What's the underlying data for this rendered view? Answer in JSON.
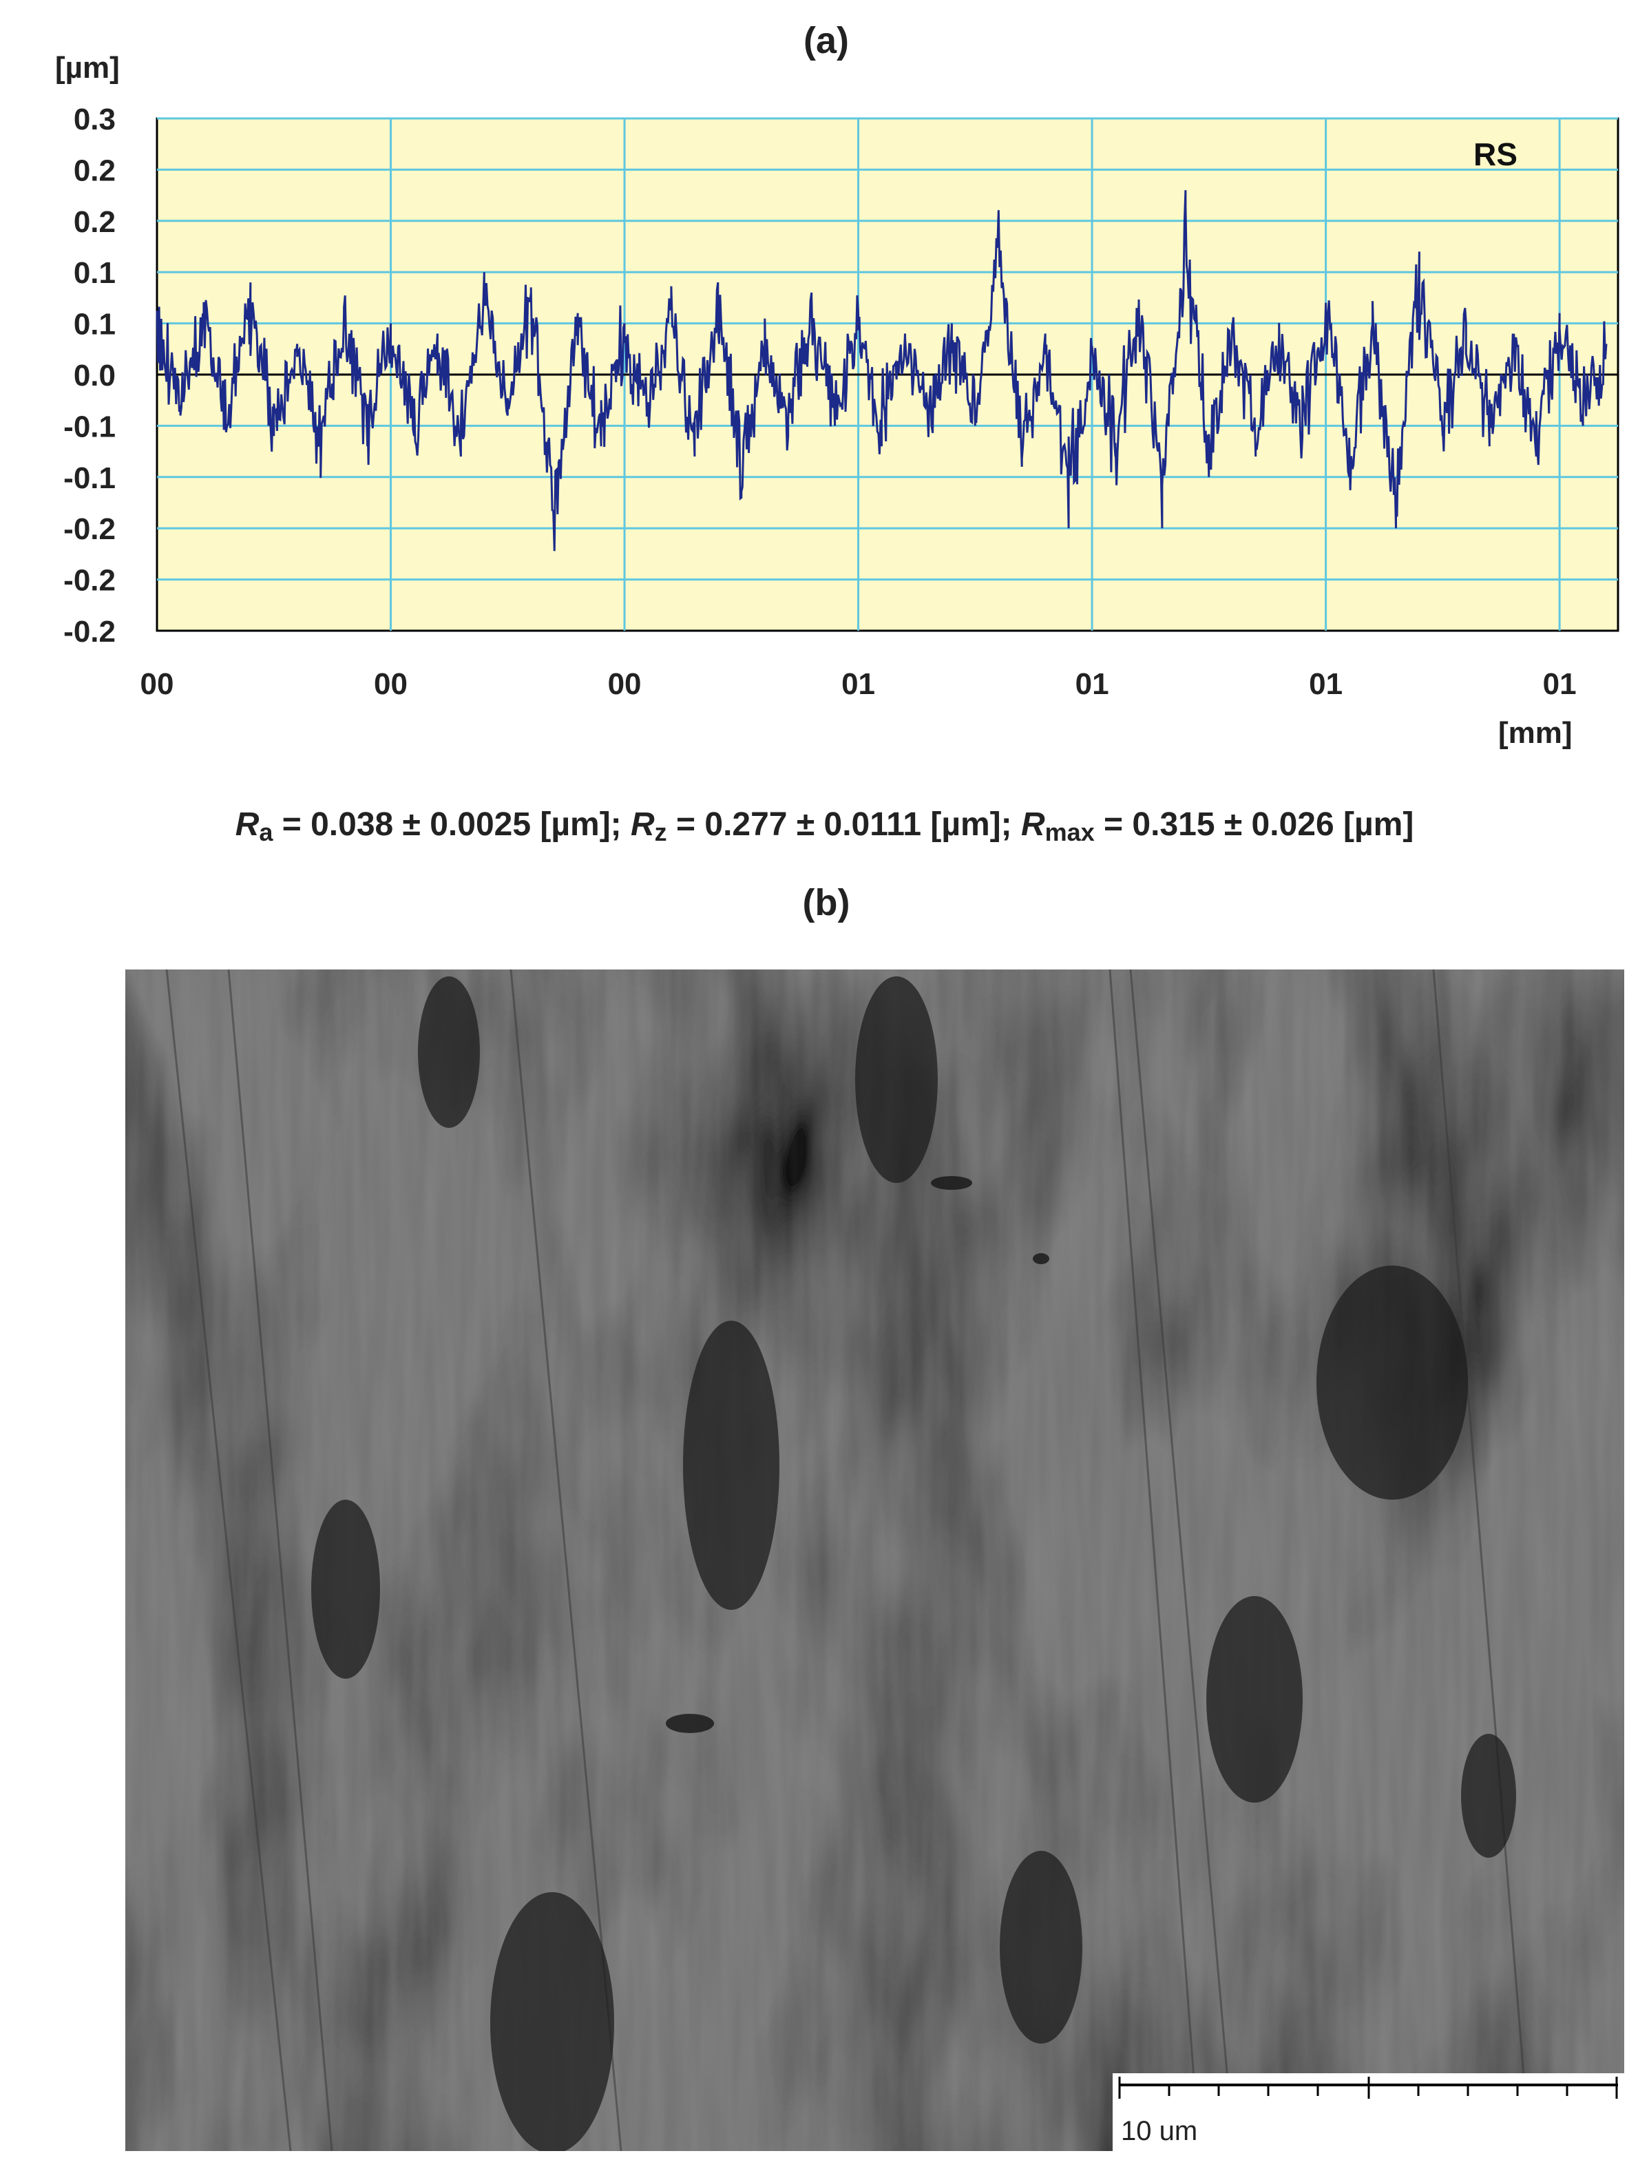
{
  "panel_a_label": "(a)",
  "panel_b_label": "(b)",
  "y_unit": "[µm]",
  "x_unit": "[mm]",
  "roughness": {
    "ra_symbol": "R",
    "ra_sub": "a",
    "ra_text": " = 0.038 ± 0.0025 [µm]; ",
    "rz_symbol": "R",
    "rz_sub": "z",
    "rz_text": " = 0.277 ± 0.0111 [µm]; ",
    "rmax_symbol": "R",
    "rmax_sub": "max",
    "rmax_text": " = 0.315 ± 0.026 [µm]"
  },
  "scale_bar_label": "10 um",
  "colors": {
    "plot_background": "#fdf9c8",
    "grid": "#5fc7e0",
    "profile": "#1c2a8a",
    "zero_line": "#000000"
  },
  "chart_data": {
    "type": "line",
    "legend": "RS",
    "ylim": [
      -0.25,
      0.25
    ],
    "y_tick_labels": [
      "0.3",
      "0.2",
      "0.2",
      "0.1",
      "0.1",
      "0.0",
      "-0.1",
      "-0.1",
      "-0.2",
      "-0.2"
    ],
    "y_tick_values": [
      0.25,
      0.2,
      0.15,
      0.1,
      0.05,
      0.0,
      -0.05,
      -0.1,
      -0.15,
      -0.2
    ],
    "x_tick_labels": [
      "00",
      "00",
      "00",
      "01",
      "01",
      "01",
      "01"
    ],
    "x_tick_values": [
      0,
      0.2,
      0.4,
      0.6,
      0.8,
      1.0,
      1.2
    ],
    "xlim": [
      0,
      1.25
    ],
    "series": [
      {
        "x": [
          0,
          0.02,
          0.04,
          0.06,
          0.08,
          0.1,
          0.12,
          0.14,
          0.16,
          0.18,
          0.2,
          0.22,
          0.24,
          0.26,
          0.28,
          0.3,
          0.32,
          0.34,
          0.36,
          0.38,
          0.4,
          0.42,
          0.44,
          0.46,
          0.48,
          0.5,
          0.52,
          0.54,
          0.56,
          0.58,
          0.6,
          0.62,
          0.64,
          0.66,
          0.68,
          0.7,
          0.72,
          0.74,
          0.76,
          0.78,
          0.8,
          0.82,
          0.84,
          0.86,
          0.88,
          0.9,
          0.92,
          0.94,
          0.96,
          0.98,
          1.0,
          1.02,
          1.04,
          1.06,
          1.08,
          1.1,
          1.12,
          1.14,
          1.16,
          1.18,
          1.2,
          1.22,
          1.24
        ],
        "y": [
          0.05,
          -0.03,
          0.06,
          -0.05,
          0.09,
          -0.06,
          0.03,
          -0.08,
          0.06,
          -0.07,
          0.05,
          -0.06,
          0.04,
          -0.08,
          0.1,
          -0.04,
          0.08,
          -0.17,
          0.06,
          -0.07,
          0.05,
          -0.04,
          0.07,
          -0.08,
          0.09,
          -0.12,
          0.03,
          -0.06,
          0.08,
          -0.05,
          0.06,
          -0.07,
          0.04,
          -0.06,
          0.05,
          -0.05,
          0.16,
          -0.09,
          0.04,
          -0.15,
          0.02,
          -0.08,
          0.07,
          -0.15,
          0.18,
          -0.1,
          0.05,
          -0.08,
          0.04,
          -0.06,
          0.07,
          -0.1,
          0.05,
          -0.15,
          0.12,
          -0.06,
          0.05,
          -0.07,
          0.04,
          -0.08,
          0.06,
          -0.05,
          0.03
        ]
      }
    ]
  }
}
